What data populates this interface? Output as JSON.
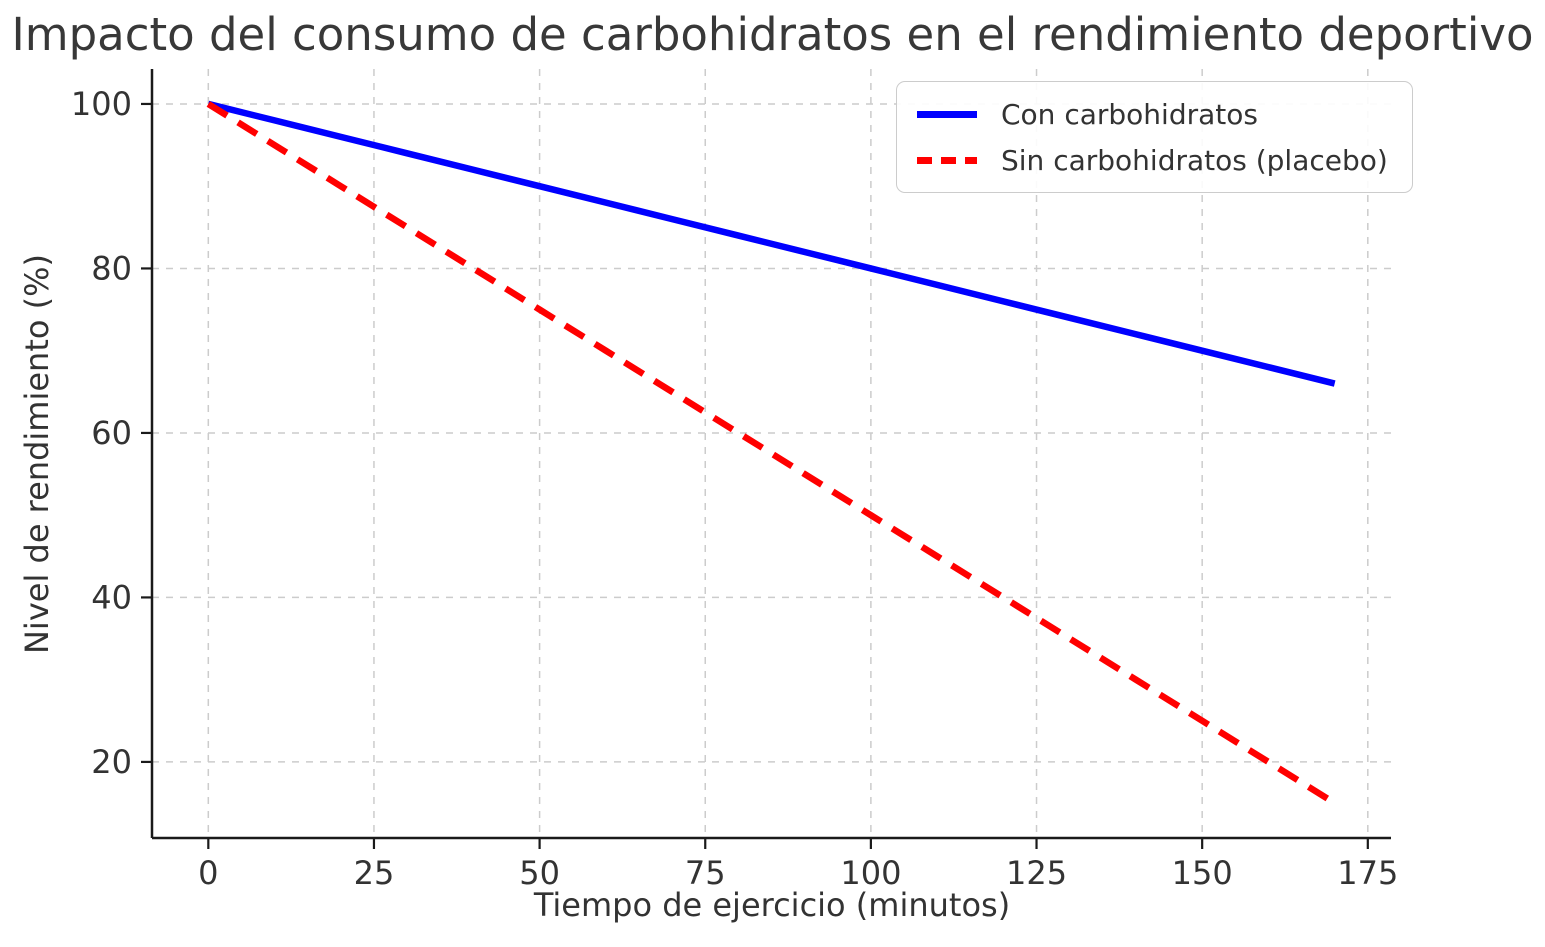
{
  "chart_data": {
    "type": "line",
    "title": "Impacto del consumo de carbohidratos en el rendimiento deportivo",
    "xlabel": "Tiempo de ejercicio (minutos)",
    "ylabel": "Nivel de rendimiento (%)",
    "x": [
      0,
      10,
      20,
      30,
      40,
      50,
      60,
      70,
      80,
      90,
      100,
      110,
      120,
      130,
      140,
      150,
      160,
      170
    ],
    "series": [
      {
        "name": "Con carbohidratos",
        "color": "#0000ff",
        "style": "solid",
        "values": [
          100,
          98,
          96,
          94,
          92,
          90,
          88,
          86,
          84,
          82,
          80,
          78,
          76,
          74,
          72,
          70,
          68,
          66
        ]
      },
      {
        "name": "Sin carbohidratos (placebo)",
        "color": "#ff0000",
        "style": "dashed",
        "values": [
          100,
          95,
          90,
          85,
          80,
          75,
          70,
          65,
          60,
          55,
          50,
          45,
          40,
          35,
          30,
          25,
          20,
          15
        ]
      }
    ],
    "xticks": [
      0,
      25,
      50,
      75,
      100,
      125,
      150,
      175
    ],
    "yticks": [
      20,
      40,
      60,
      80,
      100
    ],
    "xlim": [
      -8.5,
      178.5
    ],
    "ylim": [
      10.75,
      104.25
    ],
    "grid": true,
    "grid_color": "#cccccc",
    "grid_style": "dashed",
    "axis_color": "#1a1a1a",
    "text_color": "#333333",
    "legend_position": "upper right"
  }
}
